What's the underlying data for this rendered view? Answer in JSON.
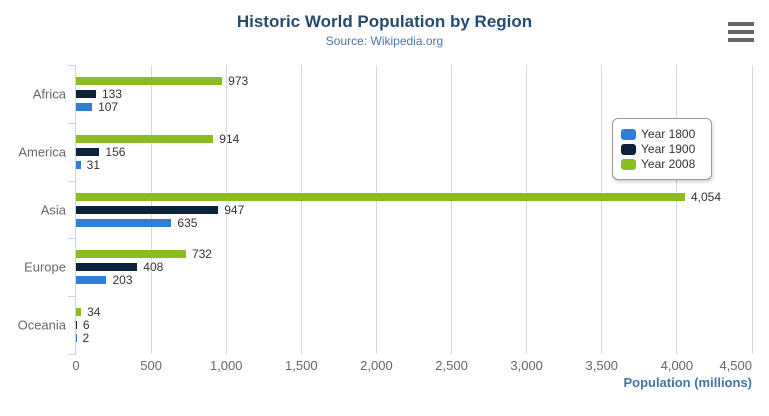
{
  "context_menu": {
    "icon": "hamburger-icon"
  },
  "colors": {
    "title": "#274b6d",
    "subtitle": "#4d759e",
    "axis_title": "#4572a7",
    "tick_labels": "#666666",
    "data_labels": "#333333",
    "gridline": "#d8d8d8",
    "category_axis_line": "#ccd6eb",
    "menu_icon": "#666666"
  },
  "chart_data": {
    "type": "bar",
    "orientation": "horizontal",
    "title": "Historic World Population by Region",
    "subtitle": "Source: Wikipedia.org",
    "categories": [
      "Africa",
      "America",
      "Asia",
      "Europe",
      "Oceania"
    ],
    "series": [
      {
        "name": "Year 1800",
        "color": "#2f7ed8",
        "values": [
          107,
          31,
          635,
          203,
          2
        ]
      },
      {
        "name": "Year 1900",
        "color": "#0d233a",
        "values": [
          133,
          156,
          947,
          408,
          6
        ]
      },
      {
        "name": "Year 2008",
        "color": "#8bbc21",
        "values": [
          973,
          914,
          4054,
          732,
          34
        ]
      }
    ],
    "series_order_in_group_top_to_bottom": [
      "Year 2008",
      "Year 1900",
      "Year 1800"
    ],
    "data_labels_visible": true,
    "xlabel": "Population (millions)",
    "xlim": [
      0,
      4500
    ],
    "xtick_values": [
      0,
      500,
      1000,
      1500,
      2000,
      2500,
      3000,
      3500,
      4000,
      4500
    ],
    "xtick_labels": [
      "0",
      "500",
      "1,000",
      "1,500",
      "2,000",
      "2,500",
      "3,000",
      "3,500",
      "4,000",
      "4,500"
    ],
    "grid": true,
    "legend_position": "right-inside",
    "legend_entries": [
      "Year 1800",
      "Year 1900",
      "Year 2008"
    ]
  }
}
